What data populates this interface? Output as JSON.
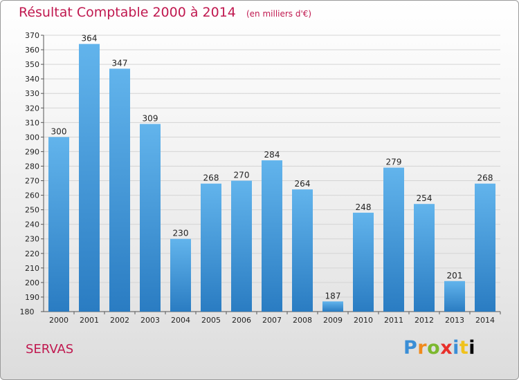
{
  "header": {
    "title": "Résultat Comptable 2000 à 2014",
    "unit": "(en milliers d'€)"
  },
  "location": "SERVAS",
  "logo": {
    "letters": [
      "P",
      "r",
      "o",
      "x",
      "i",
      "t",
      "i"
    ]
  },
  "colors": {
    "bar_top": "#62b4ec",
    "bar_bottom": "#2a7cc2",
    "title": "#c0184f"
  },
  "chart_data": {
    "type": "bar",
    "title": "Résultat Comptable 2000 à 2014",
    "categories": [
      "2000",
      "2001",
      "2002",
      "2003",
      "2004",
      "2005",
      "2006",
      "2007",
      "2008",
      "2009",
      "2010",
      "2011",
      "2012",
      "2013",
      "2014"
    ],
    "values": [
      300,
      364,
      347,
      309,
      230,
      268,
      270,
      284,
      264,
      187,
      248,
      279,
      254,
      201,
      268
    ],
    "ylim": [
      180,
      370
    ],
    "yticks": [
      180,
      190,
      200,
      210,
      220,
      230,
      240,
      250,
      260,
      270,
      280,
      290,
      300,
      310,
      320,
      330,
      340,
      350,
      360,
      370
    ],
    "xlabel": "",
    "ylabel": "",
    "grid": true
  }
}
